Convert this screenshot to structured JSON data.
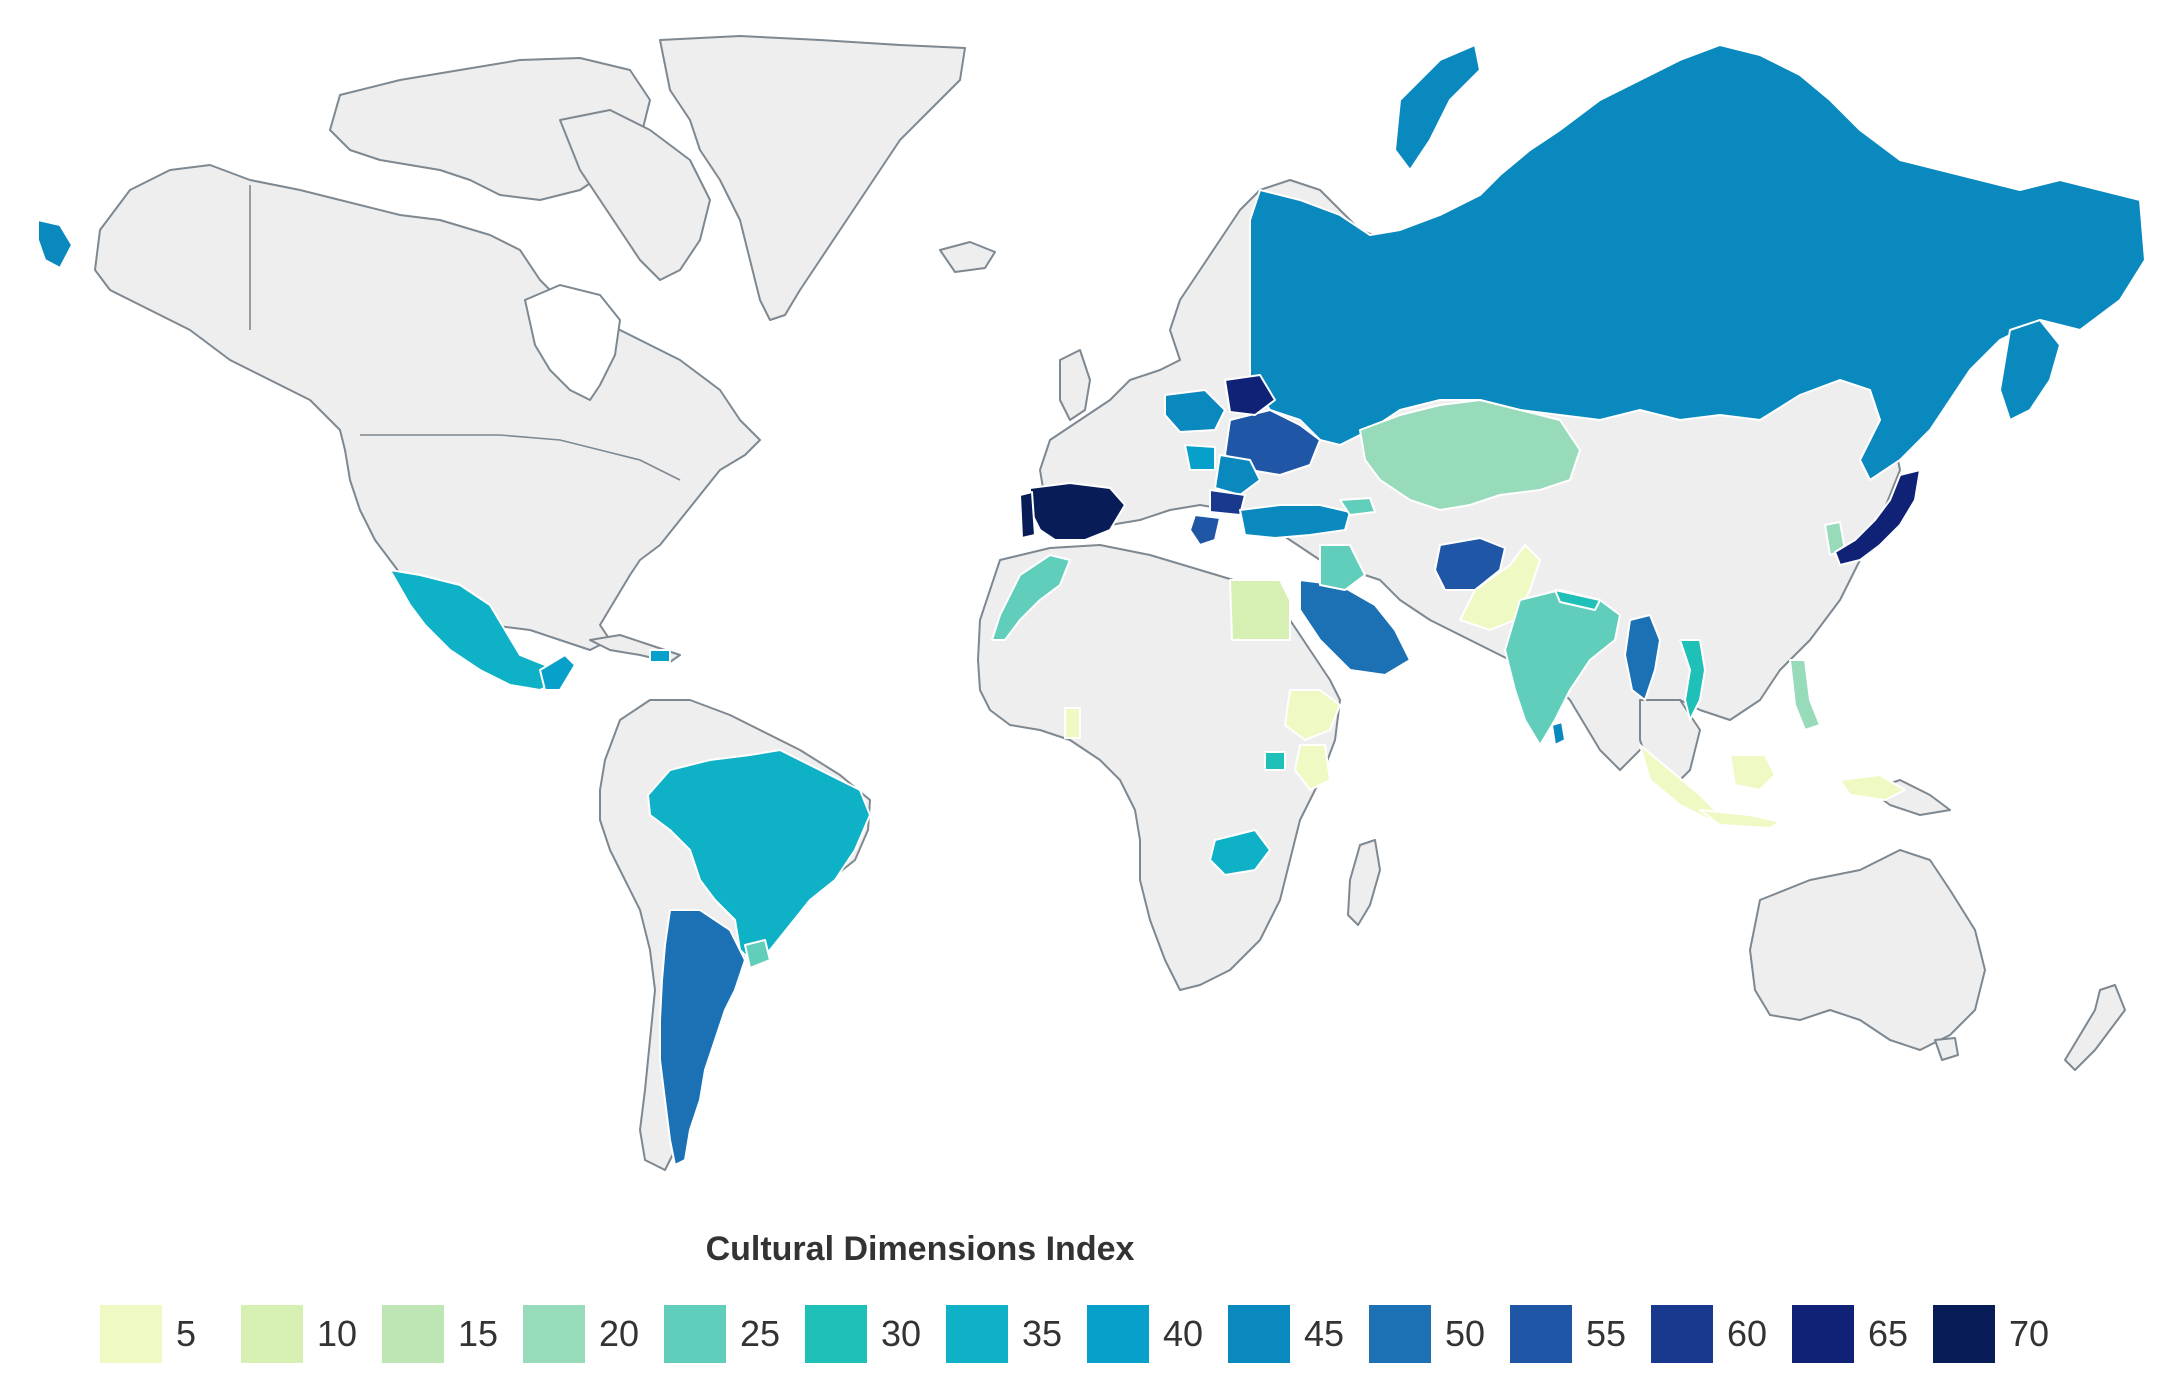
{
  "legend": {
    "title": "Cultural Dimensions Index",
    "items": [
      {
        "label": "5",
        "color": "#eff9c4"
      },
      {
        "label": "10",
        "color": "#d6efb3"
      },
      {
        "label": "15",
        "color": "#bde6b4"
      },
      {
        "label": "20",
        "color": "#97dbbb"
      },
      {
        "label": "25",
        "color": "#61cebc"
      },
      {
        "label": "30",
        "color": "#1fc0b7"
      },
      {
        "label": "35",
        "color": "#0eb1c6"
      },
      {
        "label": "40",
        "color": "#06a0cb"
      },
      {
        "label": "45",
        "color": "#0a89bf"
      },
      {
        "label": "50",
        "color": "#1b71b4"
      },
      {
        "label": "55",
        "color": "#1f56a6"
      },
      {
        "label": "60",
        "color": "#19398f"
      },
      {
        "label": "65",
        "color": "#0f2276"
      },
      {
        "label": "70",
        "color": "#081d58"
      }
    ]
  },
  "colors": {
    "no_data": "#eeeeee",
    "border": "#7d8891"
  },
  "regions_shaded": [
    {
      "name": "Russia",
      "level": "45"
    },
    {
      "name": "Kazakhstan",
      "level": "20"
    },
    {
      "name": "Japan",
      "level": "65"
    },
    {
      "name": "Spain",
      "level": "70"
    },
    {
      "name": "Mexico",
      "level": "35"
    },
    {
      "name": "Brazil",
      "level": "35"
    },
    {
      "name": "Argentina",
      "level": "50"
    },
    {
      "name": "India",
      "level": "25"
    },
    {
      "name": "Pakistan",
      "level": "5"
    },
    {
      "name": "Afghanistan",
      "level": "55"
    },
    {
      "name": "Saudi Arabia",
      "level": "50"
    },
    {
      "name": "Egypt",
      "level": "10"
    },
    {
      "name": "Ethiopia",
      "level": "5"
    },
    {
      "name": "Morocco",
      "level": "25"
    },
    {
      "name": "Turkey",
      "level": "45"
    },
    {
      "name": "Ukraine",
      "level": "55"
    },
    {
      "name": "Indonesia",
      "level": "5"
    },
    {
      "name": "Myanmar",
      "level": "50"
    },
    {
      "name": "Vietnam",
      "level": "30"
    },
    {
      "name": "Zambia",
      "level": "35"
    }
  ]
}
